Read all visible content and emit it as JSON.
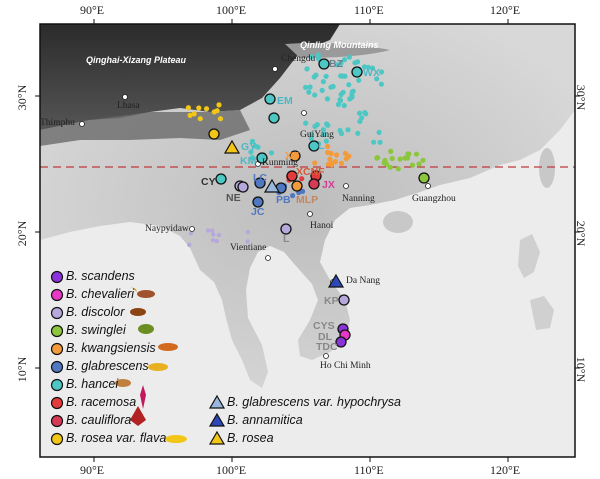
{
  "axes": {
    "top_ticks": [
      "90°E",
      "100°E",
      "110°E",
      "120°E"
    ],
    "bottom_ticks": [
      "90°E",
      "100°E",
      "110°E",
      "120°E"
    ],
    "left_ticks": [
      "30°N",
      "20°N",
      "10°N"
    ],
    "right_ticks": [
      "30°N",
      "20°N",
      "10°N"
    ]
  },
  "regions": {
    "plateau": "Qinghai-Xizang Plateau",
    "mountains": "Qinling Mountains"
  },
  "cities": [
    "Chengdu",
    "Lhasa",
    "Thimphu",
    "GuiYang",
    "Kunming",
    "Nanning",
    "Guangzhou",
    "Hanoi",
    "Naypyidaw",
    "Vientiane",
    "Da Nang",
    "Ho Chi Minh"
  ],
  "site_labels": [
    "BZ",
    "WX",
    "EM",
    "GY",
    "L",
    "XY",
    "CY",
    "NE",
    "LC",
    "JC",
    "PB",
    "MLP",
    "XCNF",
    "JX",
    "KM",
    "L",
    "KP",
    "CYS",
    "DL",
    "TDC"
  ],
  "legend": [
    {
      "label": "B. scandens",
      "color": "#8a33d9"
    },
    {
      "label": "B. chevalieri",
      "color": "#e838c6"
    },
    {
      "label": "B. discolor",
      "color": "#b7a8dc"
    },
    {
      "label": "B. swinglei",
      "color": "#8bc63c"
    },
    {
      "label": "B. kwangsiensis",
      "color": "#f39b3b"
    },
    {
      "label": "B. glabrescens",
      "color": "#4f78c0"
    },
    {
      "label": "B. hancei",
      "color": "#4cc7c4"
    },
    {
      "label": "B. racemosa",
      "color": "#e33b3b"
    },
    {
      "label": "B. cauliflora",
      "color": "#d63a55"
    },
    {
      "label": "B. rosea var. flava",
      "color": "#f2c617"
    }
  ],
  "legend_triangles": [
    {
      "label": "B. glabrescens var. hypochrysa",
      "color": "#9ab8dd"
    },
    {
      "label": "B. annamitica",
      "color": "#2c48b8"
    },
    {
      "label": "B. rosea",
      "color": "#f2c617"
    }
  ],
  "icons": [
    "bird-icon",
    "flower-icon",
    "fruit-icon",
    "leaf-icon",
    "city-marker-icon"
  ]
}
